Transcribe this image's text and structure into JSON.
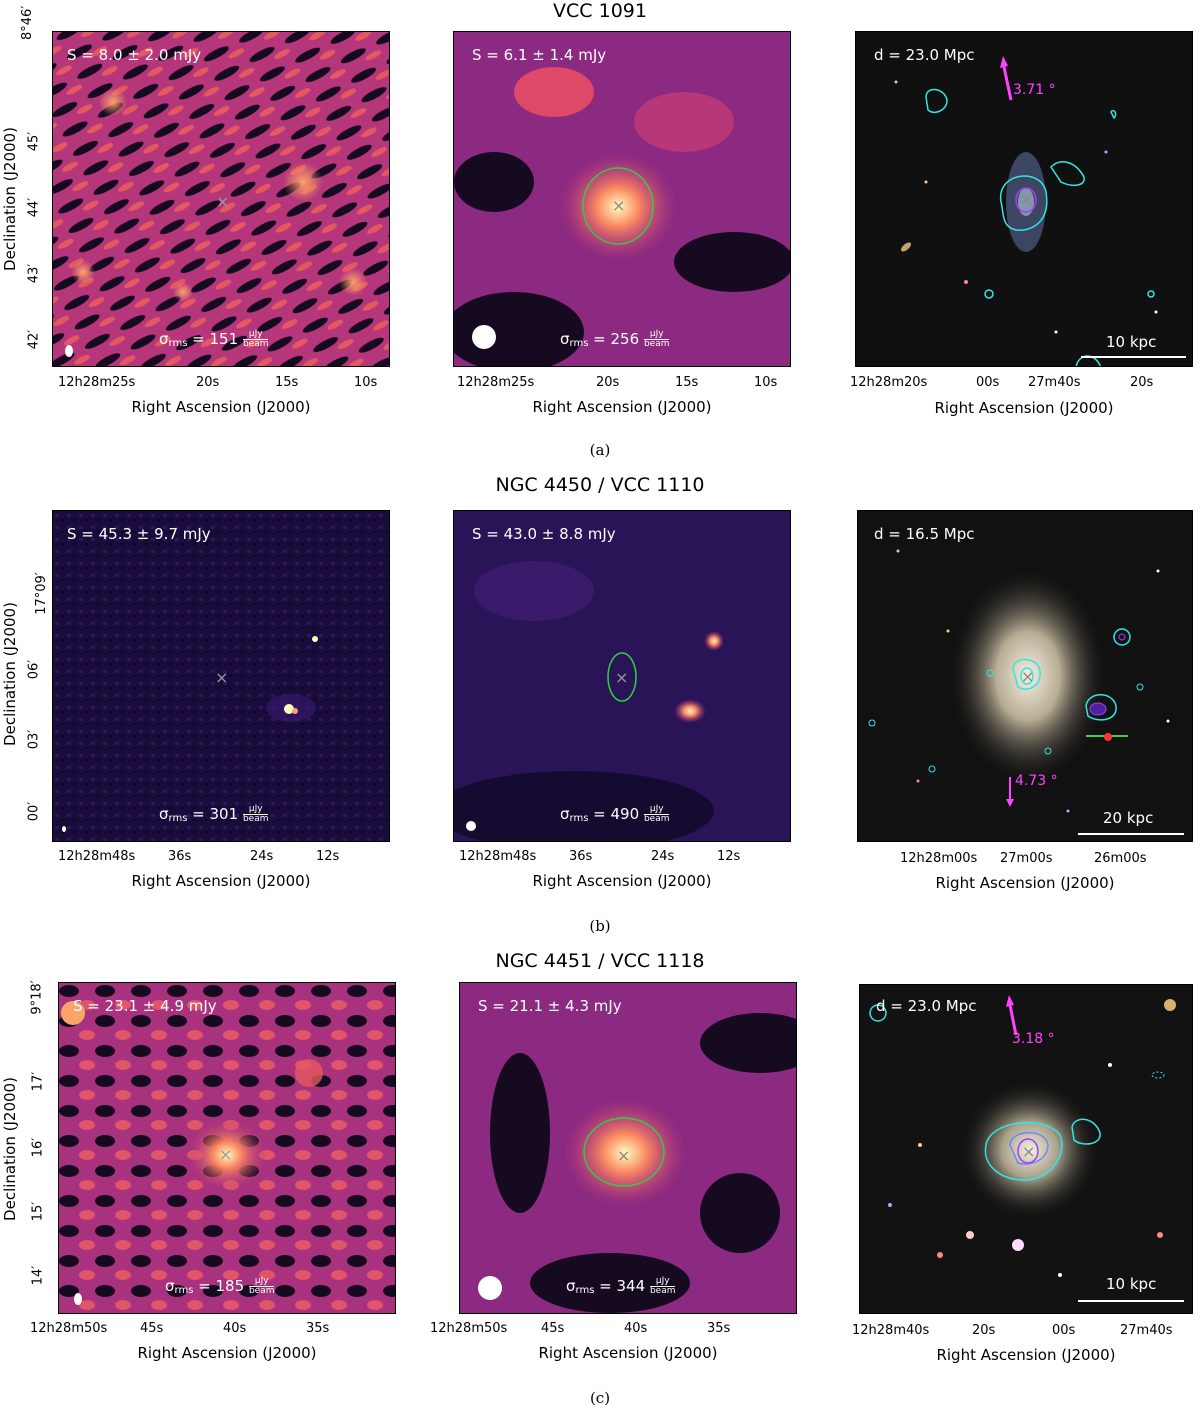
{
  "rows": [
    {
      "title": "VCC 1091",
      "caption": "(a)",
      "left": {
        "flux": "S = 8.0 ± 2.0 mJy",
        "rms_value": "151"
      },
      "middle": {
        "flux": "S = 6.1 ± 1.4 mJy",
        "rms_value": "256"
      },
      "right": {
        "distance": "d = 23.0 Mpc",
        "angle": "3.71 °",
        "scale": "10 kpc"
      },
      "dec_ticks": [
        "8°46′",
        "45′",
        "44′",
        "43′",
        "42′"
      ],
      "ra_ticks_lm": [
        "12h28m25s",
        "20s",
        "15s",
        "10s"
      ],
      "ra_ticks_r": [
        "12h28m20s",
        "00s",
        "27m40s",
        "20s"
      ]
    },
    {
      "title": "NGC 4450 / VCC 1110",
      "caption": "(b)",
      "left": {
        "flux": "S = 45.3 ± 9.7 mJy",
        "rms_value": "301"
      },
      "middle": {
        "flux": "S = 43.0 ± 8.8 mJy",
        "rms_value": "490"
      },
      "right": {
        "distance": "d = 16.5 Mpc",
        "angle": "4.73 °",
        "scale": "20 kpc"
      },
      "dec_ticks": [
        "17°09′",
        "06′",
        "03′",
        "00′"
      ],
      "ra_ticks_lm": [
        "12h28m48s",
        "36s",
        "24s",
        "12s"
      ],
      "ra_ticks_r": [
        "12h28m00s",
        "27m00s",
        "26m00s"
      ]
    },
    {
      "title": "NGC 4451 / VCC 1118",
      "caption": "(c)",
      "left": {
        "flux": "S = 23.1 ± 4.9 mJy",
        "rms_value": "185"
      },
      "middle": {
        "flux": "S = 21.1 ± 4.3 mJy",
        "rms_value": "344"
      },
      "right": {
        "distance": "d = 23.0 Mpc",
        "angle": "3.18 °",
        "scale": "10 kpc"
      },
      "dec_ticks": [
        "9°18′",
        "17′",
        "16′",
        "15′",
        "14′"
      ],
      "ra_ticks_lm": [
        "12h28m50s",
        "45s",
        "40s",
        "35s"
      ],
      "ra_ticks_r": [
        "12h28m40s",
        "20s",
        "00s",
        "27m40s"
      ]
    }
  ],
  "axis": {
    "xlabel": "Right Ascension (J2000)",
    "ylabel": "Declination (J2000)",
    "rms_symbol": "σ",
    "rms_sub": "rms",
    "rms_unit_num": "μJy",
    "rms_unit_den": "beam"
  },
  "colors": {
    "radio_bg": "#3a1050",
    "radio_hot": "#fcfdbf",
    "contour": "#33e5e5",
    "ellipse": "#33cc44",
    "arrow": "#ff44ff"
  }
}
